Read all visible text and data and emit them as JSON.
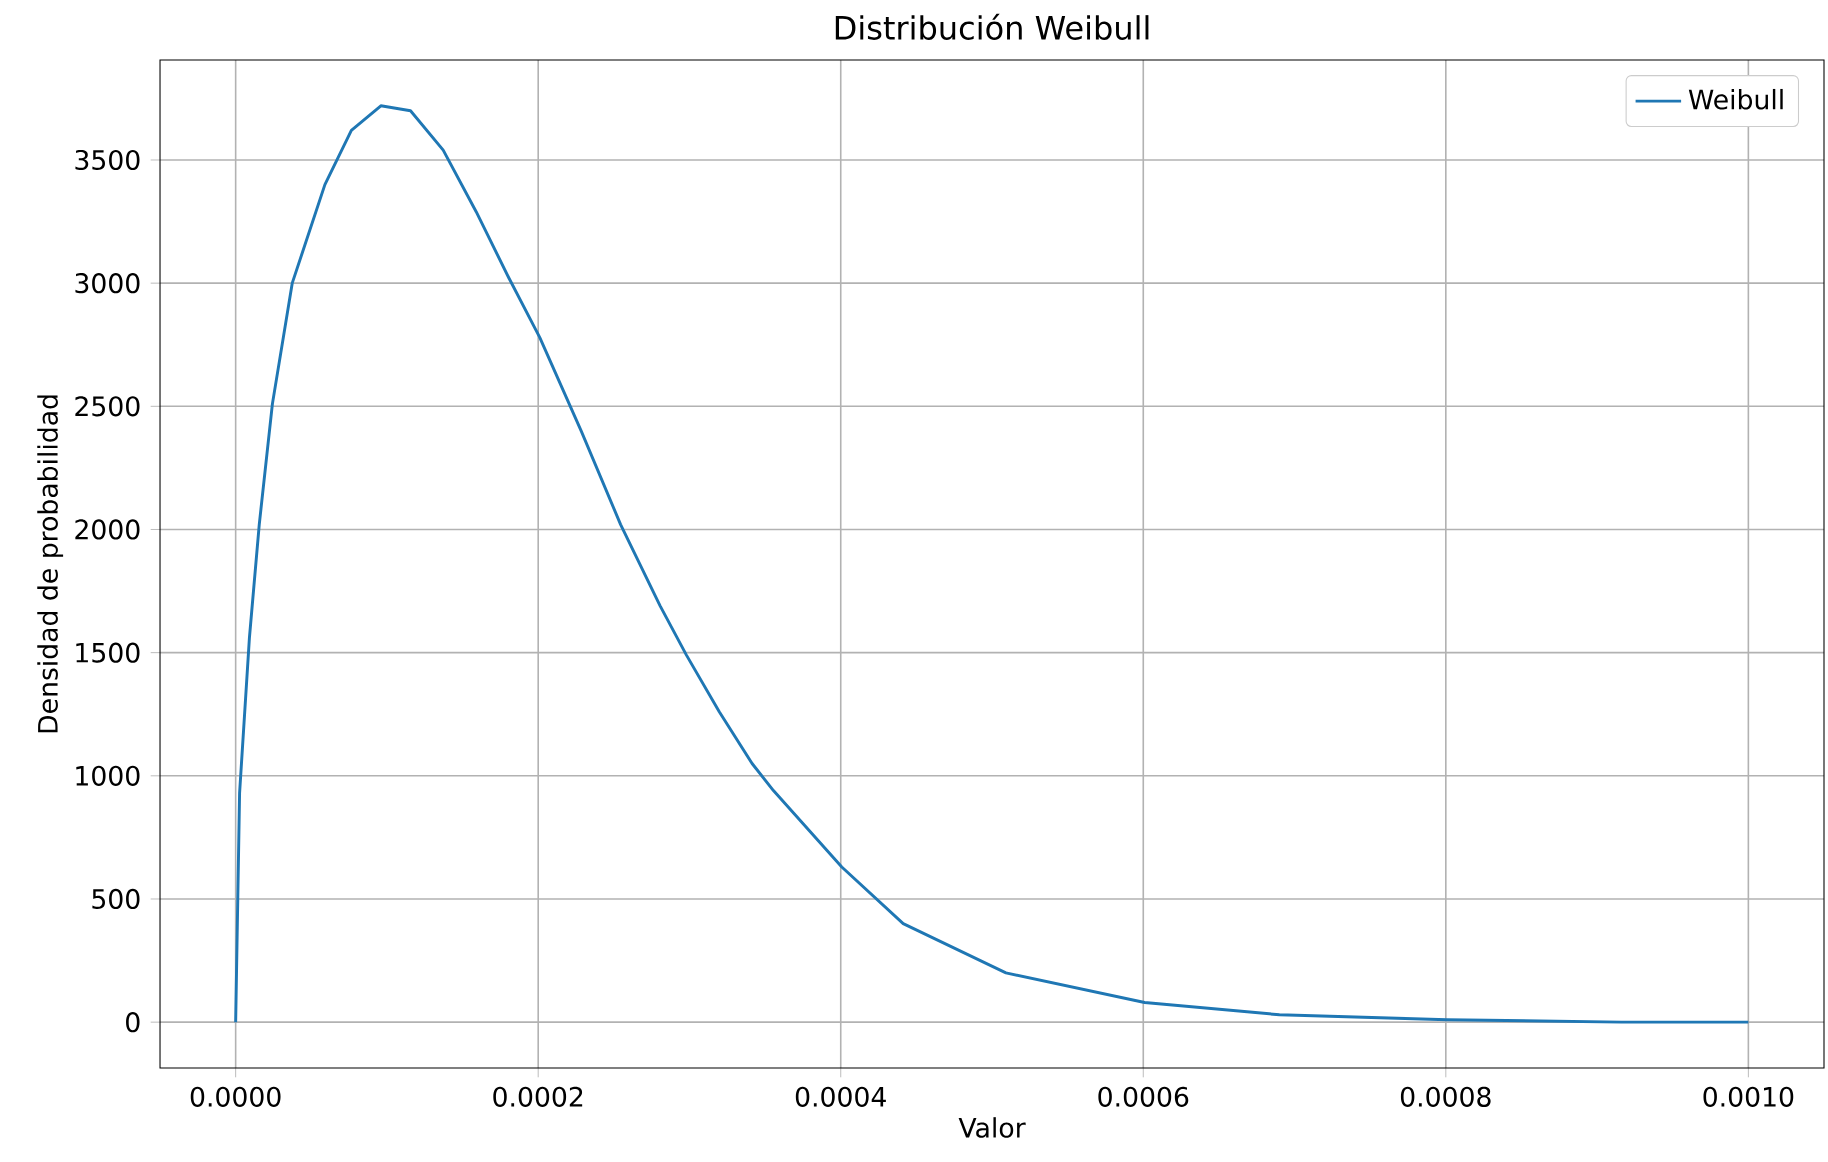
{
  "chart_data": {
    "type": "line",
    "title": "Distribución Weibull",
    "xlabel": "Valor",
    "ylabel": "Densidad de probabilidad",
    "x": [
      0,
      2.6e-06,
      9.1e-06,
      1.56e-05,
      2.43e-05,
      3.74e-05,
      5.9e-05,
      7.65e-05,
      9.6e-05,
      0.0001156,
      0.0001372,
      0.000159,
      0.0001807,
      0.000201,
      0.0002284,
      0.0002545,
      0.0002806,
      0.000298,
      0.0003197,
      0.0003414,
      0.0003555,
      0.0004007,
      0.0004413,
      0.0005092,
      0.0006009,
      0.00069,
      0.0008008,
      0.000916,
      0.001
    ],
    "series": [
      {
        "name": "Weibull",
        "color": "#1f77b4",
        "values": [
          0,
          930,
          1560,
          2020,
          2510,
          3000,
          3400,
          3620,
          3720,
          3700,
          3540,
          3290,
          3020,
          2780,
          2400,
          2020,
          1690,
          1490,
          1260,
          1050,
          940,
          630,
          400,
          200,
          80,
          30,
          10,
          0,
          0
        ]
      }
    ],
    "xlim": [
      -5e-05,
      0.00105
    ],
    "ylim": [
      -186,
      3906
    ],
    "xticks": [
      {
        "value": 0,
        "label": "0.0000"
      },
      {
        "value": 0.0002,
        "label": "0.0002"
      },
      {
        "value": 0.0004,
        "label": "0.0004"
      },
      {
        "value": 0.0006,
        "label": "0.0006"
      },
      {
        "value": 0.0008,
        "label": "0.0008"
      },
      {
        "value": 0.001,
        "label": "0.0010"
      }
    ],
    "yticks": [
      0,
      500,
      1000,
      1500,
      2000,
      2500,
      3000,
      3500
    ],
    "grid": true,
    "legend": "top right"
  }
}
